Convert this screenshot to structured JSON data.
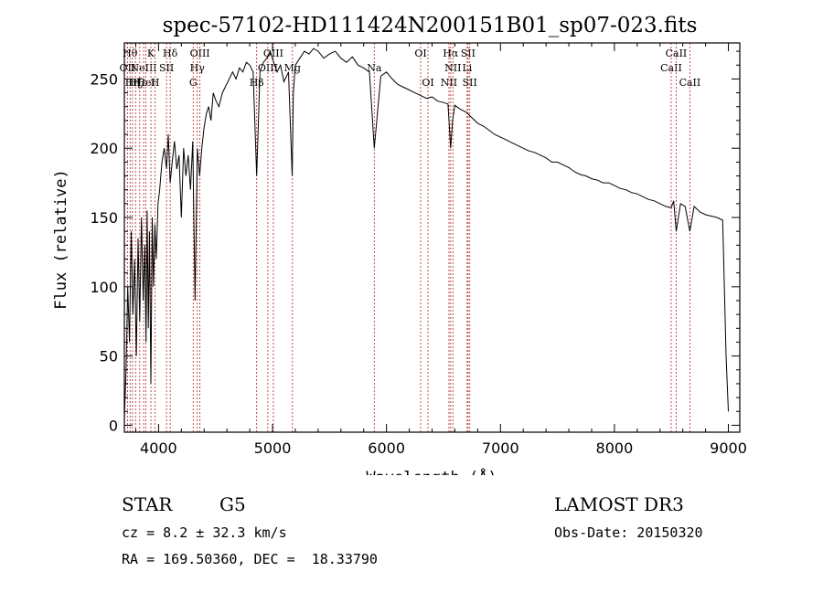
{
  "chart_data": {
    "type": "line",
    "title": "spec-57102-HD111424N200151B01_sp07-023.fits",
    "xlabel": "Wavelength (Å)",
    "ylabel": "Flux (relative)",
    "xlim": [
      3700,
      9100
    ],
    "ylim": [
      -5,
      276
    ],
    "xticks": [
      4000,
      5000,
      6000,
      7000,
      8000,
      9000
    ],
    "yticks": [
      0,
      50,
      100,
      150,
      200,
      250
    ],
    "grid": false,
    "line_color": "#000000",
    "marker_color": "#b22222",
    "series": [
      {
        "x": [
          3700,
          3715,
          3730,
          3745,
          3760,
          3775,
          3790,
          3805,
          3820,
          3835,
          3850,
          3865,
          3880,
          3890,
          3900,
          3910,
          3920,
          3933,
          3945,
          3955,
          3968,
          3980,
          3995,
          4010,
          4030,
          4050,
          4070,
          4085,
          4102,
          4120,
          4140,
          4160,
          4180,
          4200,
          4220,
          4240,
          4260,
          4280,
          4300,
          4320,
          4340,
          4360,
          4380,
          4400,
          4420,
          4440,
          4460,
          4480,
          4500,
          4530,
          4560,
          4590,
          4620,
          4650,
          4680,
          4710,
          4740,
          4770,
          4800,
          4830,
          4861,
          4890,
          4920,
          4950,
          4980,
          5010,
          5040,
          5070,
          5100,
          5140,
          5172,
          5183,
          5200,
          5240,
          5280,
          5320,
          5360,
          5400,
          5450,
          5500,
          5550,
          5600,
          5650,
          5700,
          5750,
          5800,
          5850,
          5893,
          5950,
          6000,
          6050,
          6100,
          6150,
          6200,
          6250,
          6300,
          6350,
          6400,
          6450,
          6500,
          6540,
          6563,
          6580,
          6600,
          6650,
          6700,
          6750,
          6800,
          6850,
          6900,
          6950,
          7000,
          7050,
          7100,
          7150,
          7200,
          7250,
          7300,
          7350,
          7400,
          7450,
          7500,
          7550,
          7600,
          7650,
          7700,
          7750,
          7800,
          7850,
          7900,
          7950,
          8000,
          8050,
          8100,
          8150,
          8200,
          8250,
          8300,
          8350,
          8400,
          8450,
          8498,
          8520,
          8542,
          8580,
          8620,
          8662,
          8700,
          8750,
          8800,
          8850,
          8900,
          8950,
          8980,
          9000
        ],
        "y": [
          5,
          40,
          100,
          60,
          140,
          80,
          120,
          50,
          135,
          75,
          150,
          90,
          130,
          60,
          155,
          70,
          140,
          30,
          150,
          100,
          145,
          120,
          160,
          170,
          190,
          200,
          185,
          210,
          175,
          190,
          205,
          185,
          195,
          150,
          200,
          180,
          195,
          170,
          205,
          90,
          200,
          180,
          200,
          215,
          225,
          230,
          220,
          240,
          235,
          230,
          240,
          245,
          250,
          255,
          250,
          258,
          255,
          262,
          260,
          255,
          180,
          255,
          262,
          265,
          270,
          262,
          255,
          260,
          248,
          255,
          180,
          240,
          260,
          265,
          270,
          268,
          272,
          270,
          265,
          268,
          270,
          265,
          262,
          266,
          260,
          258,
          255,
          200,
          252,
          255,
          250,
          246,
          244,
          242,
          240,
          238,
          236,
          237,
          234,
          233,
          232,
          200,
          220,
          231,
          228,
          226,
          222,
          218,
          216,
          213,
          210,
          208,
          206,
          204,
          202,
          200,
          198,
          197,
          195,
          193,
          190,
          190,
          188,
          186,
          183,
          181,
          180,
          178,
          177,
          175,
          175,
          173,
          171,
          170,
          168,
          167,
          165,
          163,
          162,
          160,
          158,
          157,
          162,
          140,
          160,
          158,
          140,
          158,
          154,
          152,
          151,
          150,
          148,
          50,
          10
        ]
      }
    ],
    "lines": [
      {
        "x": 3727,
        "label": "OII",
        "row": 2
      },
      {
        "x": 3750,
        "label": "Hθ",
        "row": 1
      },
      {
        "x": 3771,
        "label": "Hη",
        "row": 3
      },
      {
        "x": 3798,
        "label": "Hζ",
        "row": 3
      },
      {
        "x": 3835,
        "label": "Hε",
        "row": 3
      },
      {
        "x": 3869,
        "label": "NeIII",
        "row": 2
      },
      {
        "x": 3889,
        "label": "HeI",
        "row": 3
      },
      {
        "x": 3933,
        "label": "K",
        "row": 1
      },
      {
        "x": 3970,
        "label": "H",
        "row": 3
      },
      {
        "x": 4070,
        "label": "SII",
        "row": 2
      },
      {
        "x": 4102,
        "label": "Hδ",
        "row": 1
      },
      {
        "x": 4304,
        "label": "G",
        "row": 3
      },
      {
        "x": 4340,
        "label": "Hγ",
        "row": 2
      },
      {
        "x": 4363,
        "label": "OIII",
        "row": 1
      },
      {
        "x": 4861,
        "label": "Hβ",
        "row": 3
      },
      {
        "x": 4959,
        "label": "OIII",
        "row": 2
      },
      {
        "x": 5007,
        "label": "OIII",
        "row": 1
      },
      {
        "x": 5175,
        "label": "Mg",
        "row": 2
      },
      {
        "x": 5893,
        "label": "Na",
        "row": 2
      },
      {
        "x": 6300,
        "label": "OI",
        "row": 1
      },
      {
        "x": 6364,
        "label": "OI",
        "row": 3
      },
      {
        "x": 6548,
        "label": "NII",
        "row": 3
      },
      {
        "x": 6563,
        "label": "Hα",
        "row": 1
      },
      {
        "x": 6583,
        "label": "NII",
        "row": 2
      },
      {
        "x": 6708,
        "label": "Li",
        "row": 2
      },
      {
        "x": 6716,
        "label": "SII",
        "row": 1
      },
      {
        "x": 6731,
        "label": "SII",
        "row": 3
      },
      {
        "x": 8498,
        "label": "CaII",
        "row": 2
      },
      {
        "x": 8542,
        "label": "CaII",
        "row": 1
      },
      {
        "x": 8662,
        "label": "CaII",
        "row": 3
      }
    ]
  },
  "info": {
    "class": "STAR",
    "subclass": "G5",
    "survey": "LAMOST DR3",
    "cz": "cz = 8.2 ± 32.3 km/s",
    "obs_date": "Obs-Date: 20150320",
    "radec": "RA = 169.50360, DEC =  18.33790"
  }
}
